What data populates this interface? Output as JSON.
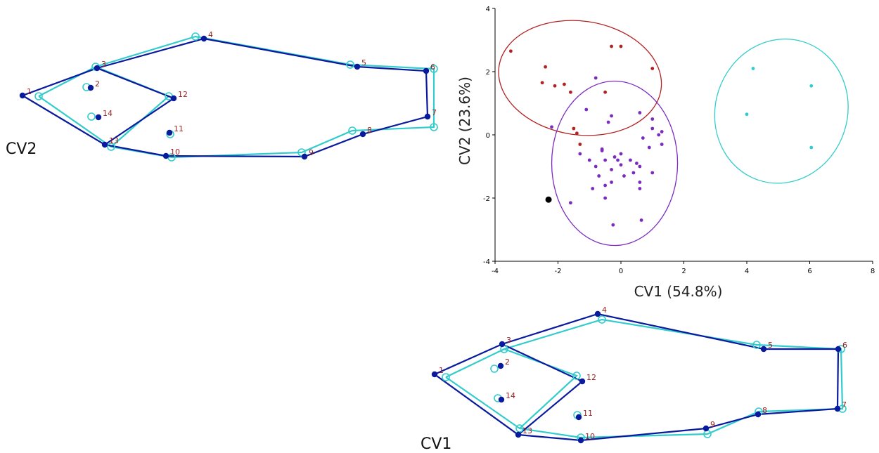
{
  "shape_panels": {
    "cv2": {
      "label": "CV2",
      "landmark_labels": [
        "1",
        "2",
        "3",
        "4",
        "5",
        "6",
        "7",
        "8",
        "9",
        "10",
        "11",
        "12",
        "13",
        "14"
      ],
      "landmarks_a": [
        [
          32,
          136
        ],
        [
          129,
          125
        ],
        [
          138,
          97
        ],
        [
          290,
          55
        ],
        [
          508,
          95
        ],
        [
          606,
          101
        ],
        [
          608,
          166
        ],
        [
          516,
          191
        ],
        [
          433,
          223
        ],
        [
          236,
          222
        ],
        [
          241,
          189
        ],
        [
          247,
          140
        ],
        [
          149,
          206
        ],
        [
          140,
          167
        ]
      ],
      "landmarks_b": [
        [
          55,
          137
        ],
        [
          123,
          124
        ],
        [
          136,
          95
        ],
        [
          278,
          52
        ],
        [
          498,
          92
        ],
        [
          617,
          98
        ],
        [
          617,
          181
        ],
        [
          501,
          186
        ],
        [
          429,
          217
        ],
        [
          244,
          224
        ],
        [
          242,
          191
        ],
        [
          240,
          137
        ],
        [
          158,
          209
        ],
        [
          130,
          166
        ]
      ]
    },
    "cv1": {
      "label": "CV1",
      "landmark_labels": [
        "1",
        "2",
        "3",
        "4",
        "5",
        "6",
        "7",
        "8",
        "9",
        "10",
        "11",
        "12",
        "13",
        "14"
      ],
      "landmarks_a": [
        [
          18,
          98
        ],
        [
          112,
          86
        ],
        [
          114,
          55
        ],
        [
          250,
          12
        ],
        [
          486,
          62
        ],
        [
          592,
          62
        ],
        [
          591,
          147
        ],
        [
          478,
          155
        ],
        [
          404,
          175
        ],
        [
          226,
          192
        ],
        [
          223,
          159
        ],
        [
          228,
          108
        ],
        [
          137,
          184
        ],
        [
          113,
          134
        ]
      ],
      "landmarks_b": [
        [
          34,
          102
        ],
        [
          103,
          90
        ],
        [
          117,
          62
        ],
        [
          256,
          20
        ],
        [
          476,
          56
        ],
        [
          596,
          62
        ],
        [
          598,
          147
        ],
        [
          479,
          151
        ],
        [
          406,
          183
        ],
        [
          226,
          188
        ],
        [
          221,
          156
        ],
        [
          220,
          100
        ],
        [
          139,
          175
        ],
        [
          108,
          132
        ]
      ]
    },
    "colors": {
      "dark": "#0a1a9c",
      "light": "#33cccc",
      "label": "#9b1f1f"
    }
  },
  "chart_data": {
    "type": "scatter",
    "xlabel": "CV1 (54.8%)",
    "ylabel": "CV2 (23.6%)",
    "xlim": [
      -4,
      8
    ],
    "ylim": [
      -4,
      4
    ],
    "xticks": [
      -4,
      -2,
      0,
      2,
      4,
      6,
      8
    ],
    "yticks": [
      -4,
      -2,
      0,
      2,
      4
    ],
    "grid": false,
    "series": [
      {
        "color": "#b22222",
        "points": [
          [
            -3.5,
            2.65
          ],
          [
            -2.4,
            2.15
          ],
          [
            -2.5,
            1.65
          ],
          [
            -2.1,
            1.55
          ],
          [
            -1.8,
            1.6
          ],
          [
            -1.6,
            1.35
          ],
          [
            -0.3,
            2.8
          ],
          [
            0,
            2.8
          ],
          [
            1,
            2.1
          ],
          [
            -0.5,
            1.35
          ],
          [
            -1.5,
            0.2
          ],
          [
            -1.3,
            -0.3
          ],
          [
            -1.4,
            0.05
          ]
        ],
        "ellipse": {
          "cx": -1.3,
          "cy": 1.8,
          "rx": 2.6,
          "ry": 1.8,
          "angle": -8
        }
      },
      {
        "color": "#7b2cbf",
        "points": [
          [
            -2.2,
            0.25
          ],
          [
            -1.1,
            0.8
          ],
          [
            -0.8,
            1.8
          ],
          [
            -0.4,
            0.4
          ],
          [
            -0.3,
            0.6
          ],
          [
            0.6,
            0.7
          ],
          [
            1,
            0.5
          ],
          [
            1.3,
            0.1
          ],
          [
            1,
            0.2
          ],
          [
            1.2,
            0
          ],
          [
            0.7,
            -0.1
          ],
          [
            1.3,
            -0.3
          ],
          [
            0.9,
            -0.4
          ],
          [
            -0.6,
            -0.5
          ],
          [
            -0.6,
            -0.45
          ],
          [
            -0.2,
            -0.7
          ],
          [
            -1,
            -0.8
          ],
          [
            0,
            -0.6
          ],
          [
            0.3,
            -0.8
          ],
          [
            -0.5,
            -0.8
          ],
          [
            -0.1,
            -0.8
          ],
          [
            0.6,
            -1
          ],
          [
            0.4,
            -1.2
          ],
          [
            -0.8,
            -1
          ],
          [
            -0.3,
            -1.1
          ],
          [
            0,
            -0.95
          ],
          [
            0.5,
            -0.9
          ],
          [
            1,
            -1.2
          ],
          [
            -0.7,
            -1.3
          ],
          [
            -0.3,
            -1.5
          ],
          [
            0.1,
            -1.3
          ],
          [
            -0.5,
            -1.6
          ],
          [
            0.6,
            -1.5
          ],
          [
            0.6,
            -1.7
          ],
          [
            -1.3,
            -0.6
          ],
          [
            -0.9,
            -1.7
          ],
          [
            -0.5,
            -2
          ],
          [
            -1.6,
            -2.15
          ],
          [
            -0.25,
            -2.85
          ],
          [
            0.65,
            -2.7
          ]
        ],
        "ellipse": {
          "cx": -0.2,
          "cy": -0.9,
          "rx": 2,
          "ry": 2.6,
          "angle": 0
        }
      },
      {
        "color": "#33cccc",
        "points": [
          [
            4.2,
            2.1
          ],
          [
            6.05,
            1.55
          ],
          [
            4,
            0.65
          ],
          [
            6.05,
            -0.4
          ]
        ],
        "ellipse": {
          "cx": 5.1,
          "cy": 0.75,
          "rx": 2.1,
          "ry": 2.3,
          "angle": -18
        }
      },
      {
        "color": "#000000",
        "points": [
          [
            -2.3,
            -2.05
          ]
        ]
      }
    ]
  }
}
